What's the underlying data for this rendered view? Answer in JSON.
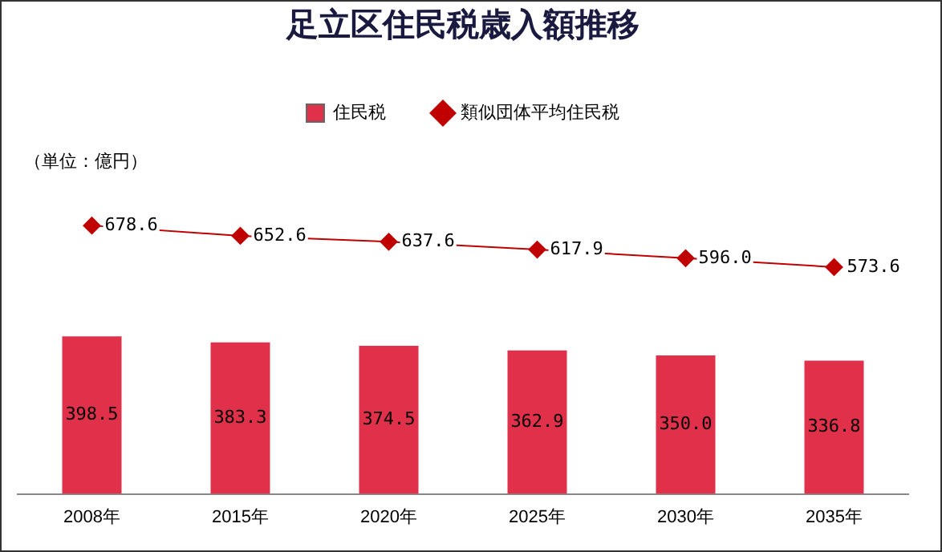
{
  "chart_data": {
    "type": "bar",
    "title": "足立区住民税歳入額推移",
    "categories": [
      "2008年",
      "2015年",
      "2020年",
      "2025年",
      "2030年",
      "2035年"
    ],
    "series": [
      {
        "name": "住民税",
        "color": "#e0304a",
        "values": [
          398.5,
          383.3,
          374.5,
          362.9,
          350.0,
          336.8
        ],
        "value_labels": [
          "398.5",
          "383.3",
          "374.5",
          "362.9",
          "350.0",
          "336.8"
        ]
      },
      {
        "name": "類似団体平均住民税",
        "type": "line",
        "color": "#c00000",
        "marker": "diamond",
        "values": [
          678.6,
          652.6,
          637.6,
          617.9,
          596.0,
          573.6
        ],
        "value_labels": [
          "678.6",
          "652.6",
          "637.6",
          "617.9",
          "596.0",
          "573.6"
        ]
      }
    ],
    "legend": "top",
    "grid": false,
    "annotations": [
      "（単位：億円）"
    ]
  }
}
